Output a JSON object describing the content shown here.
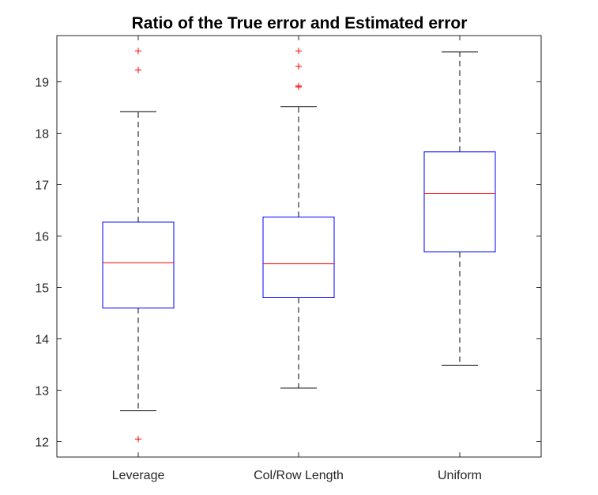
{
  "chart_data": {
    "type": "boxplot",
    "title": "Ratio of the True error and Estimated error",
    "xlabel": "",
    "ylabel": "",
    "ylim": [
      11.7,
      19.9
    ],
    "yticks": [
      12,
      13,
      14,
      15,
      16,
      17,
      18,
      19
    ],
    "ytick_labels": [
      "12",
      "13",
      "14",
      "15",
      "16",
      "17",
      "18",
      "19"
    ],
    "categories": [
      "Leverage",
      "Col/Row Length",
      "Uniform"
    ],
    "grid": false,
    "legend": "none",
    "boxes": [
      {
        "category": "Leverage",
        "whisker_low": 12.6,
        "q1": 14.6,
        "median": 15.48,
        "q3": 16.27,
        "whisker_high": 18.42,
        "outliers": [
          12.05,
          19.23,
          19.6
        ]
      },
      {
        "category": "Col/Row Length",
        "whisker_low": 13.04,
        "q1": 14.8,
        "median": 15.46,
        "q3": 16.37,
        "whisker_high": 18.52,
        "outliers": [
          18.9,
          18.92,
          19.3,
          19.6
        ]
      },
      {
        "category": "Uniform",
        "whisker_low": 13.48,
        "q1": 15.69,
        "median": 16.83,
        "q3": 17.64,
        "whisker_high": 19.58,
        "outliers": []
      }
    ],
    "colors": {
      "box": "#0000ff",
      "median": "#ff0000",
      "whisker": "#000000",
      "outlier": "#ff0000",
      "axis": "#262626"
    }
  }
}
